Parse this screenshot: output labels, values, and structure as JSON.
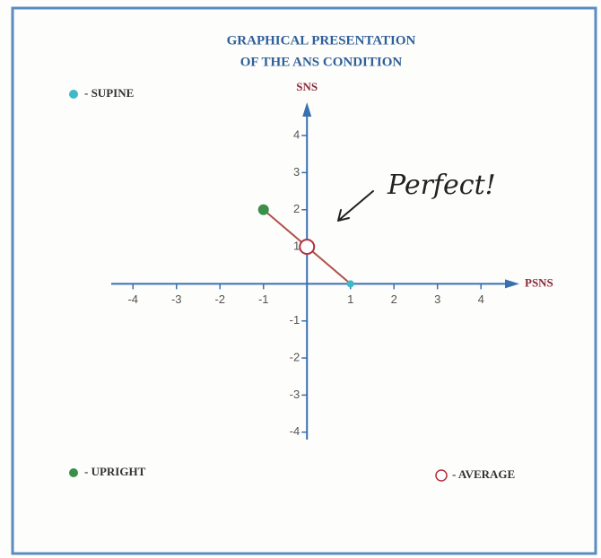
{
  "chart_data": {
    "type": "scatter",
    "title": [
      "GRAPHICAL PRESENTATION",
      "OF THE ANS CONDITION"
    ],
    "x_label": "PSNS",
    "y_label": "SNS",
    "annotation": "Perfect!",
    "xlim": [
      -4.5,
      4.8
    ],
    "ylim": [
      -4.2,
      4.8
    ],
    "xticks": [
      -4,
      -3,
      -2,
      -1,
      1,
      2,
      3,
      4
    ],
    "yticks": [
      -4,
      -3,
      -2,
      -1,
      1,
      2,
      3,
      4
    ],
    "axis_color": "#3a6fb0",
    "connector_color": "#b0504a",
    "series": [
      {
        "name": "- SUPINE",
        "color": "#3fb8c8",
        "marker": "filled",
        "x": [
          1
        ],
        "values": [
          0
        ]
      },
      {
        "name": "- UPRIGHT",
        "color": "#3a8f4a",
        "marker": "filled",
        "x": [
          -1
        ],
        "values": [
          2
        ]
      },
      {
        "name": "- AVERAGE",
        "color": "#b03040",
        "marker": "open",
        "x": [
          0
        ],
        "values": [
          1
        ]
      }
    ]
  }
}
